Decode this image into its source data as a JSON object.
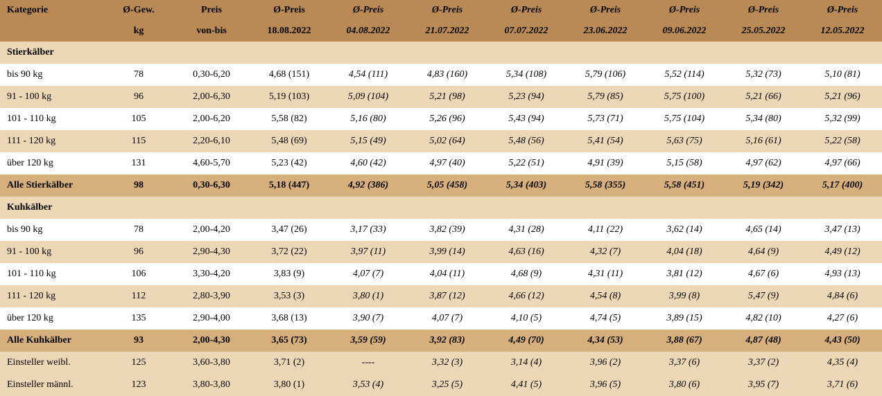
{
  "header": {
    "row1": [
      "Kategorie",
      "Ø-Gew.",
      "Preis",
      "Ø-Preis",
      "Ø-Preis",
      "Ø-Preis",
      "Ø-Preis",
      "Ø-Preis",
      "Ø-Preis",
      "Ø-Preis",
      "Ø-Preis"
    ],
    "row2": [
      "",
      "kg",
      "von-bis",
      "18.08.2022",
      "04.08.2022",
      "21.07.2022",
      "07.07.2022",
      "23.06.2022",
      "09.06.2022",
      "25.05.2022",
      "12.05.2022"
    ]
  },
  "sections": {
    "stier": {
      "title": "Stierkälber",
      "rows": [
        {
          "kat": "bis 90 kg",
          "gew": "78",
          "preis": "0,30-6,20",
          "v": [
            "4,68 (151)",
            "4,54 (111)",
            "4,83 (160)",
            "5,34 (108)",
            "5,79 (106)",
            "5,52 (114)",
            "5,32 (73)",
            "5,10 (81)"
          ]
        },
        {
          "kat": "91 - 100 kg",
          "gew": "96",
          "preis": "2,00-6,30",
          "v": [
            "5,19 (103)",
            "5,09 (104)",
            "5,21 (98)",
            "5,23 (94)",
            "5,79 (85)",
            "5,75 (100)",
            "5,21 (66)",
            "5,21 (96)"
          ]
        },
        {
          "kat": "101 - 110 kg",
          "gew": "105",
          "preis": "2,00-6,20",
          "v": [
            "5,58 (82)",
            "5,16 (80)",
            "5,26 (96)",
            "5,43 (94)",
            "5,73 (71)",
            "5,75 (104)",
            "5,34 (80)",
            "5,32 (99)"
          ]
        },
        {
          "kat": "111 - 120 kg",
          "gew": "115",
          "preis": "2,20-6,10",
          "v": [
            "5,48 (69)",
            "5,15 (49)",
            "5,02 (64)",
            "5,48 (56)",
            "5,41 (54)",
            "5,63 (75)",
            "5,16 (61)",
            "5,22 (58)"
          ]
        },
        {
          "kat": "über 120 kg",
          "gew": "131",
          "preis": "4,60-5,70",
          "v": [
            "5,23 (42)",
            "4,60 (42)",
            "4,97 (40)",
            "5,22 (51)",
            "4,91 (39)",
            "5,15 (58)",
            "4,97 (62)",
            "4,97 (66)"
          ]
        }
      ],
      "total": {
        "kat": "Alle Stierkälber",
        "gew": "98",
        "preis": "0,30-6,30",
        "v": [
          "5,18 (447)",
          "4,92 (386)",
          "5,05 (458)",
          "5,34 (403)",
          "5,58 (355)",
          "5,58 (451)",
          "5,19 (342)",
          "5,17 (400)"
        ]
      }
    },
    "kuh": {
      "title": "Kuhkälber",
      "rows": [
        {
          "kat": "bis 90 kg",
          "gew": "78",
          "preis": "2,00-4,20",
          "v": [
            "3,47 (26)",
            "3,17 (33)",
            "3,82 (39)",
            "4,31 (28)",
            "4,11 (22)",
            "3,62 (14)",
            "4,65 (14)",
            "3,47 (13)"
          ]
        },
        {
          "kat": "91 - 100 kg",
          "gew": "96",
          "preis": "2,90-4,30",
          "v": [
            "3,72 (22)",
            "3,97 (11)",
            "3,99 (14)",
            "4,63 (16)",
            "4,32 (7)",
            "4,04 (18)",
            "4,64 (9)",
            "4,49 (12)"
          ]
        },
        {
          "kat": "101 - 110 kg",
          "gew": "106",
          "preis": "3,30-4,20",
          "v": [
            "3,83 (9)",
            "4,07 (7)",
            "4,04 (11)",
            "4,68 (9)",
            "4,31 (11)",
            "3,81 (12)",
            "4,67 (6)",
            "4,93 (13)"
          ]
        },
        {
          "kat": "111 - 120 kg",
          "gew": "112",
          "preis": "2,80-3,90",
          "v": [
            "3,53 (3)",
            "3,80 (1)",
            "3,87 (12)",
            "4,66 (12)",
            "4,54 (8)",
            "3,99 (8)",
            "5,47 (9)",
            "4,84 (6)"
          ]
        },
        {
          "kat": "über 120 kg",
          "gew": "135",
          "preis": "2,90-4,00",
          "v": [
            "3,68 (13)",
            "3,90 (7)",
            "4,07 (7)",
            "4,10 (5)",
            "4,74 (5)",
            "3,89 (15)",
            "4,82 (10)",
            "4,27 (6)"
          ]
        }
      ],
      "total": {
        "kat": "Alle Kuhkälber",
        "gew": "93",
        "preis": "2,00-4,30",
        "v": [
          "3,65 (73)",
          "3,59 (59)",
          "3,92 (83)",
          "4,49 (70)",
          "4,34 (53)",
          "3,88 (67)",
          "4,87 (48)",
          "4,43 (50)"
        ]
      }
    },
    "einsteller": [
      {
        "kat": "Einsteller weibl.",
        "gew": "125",
        "preis": "3,60-3,80",
        "v": [
          "3,71 (2)",
          "----",
          "3,32 (3)",
          "3,14 (4)",
          "3,96 (2)",
          "3,37 (6)",
          "3,37 (2)",
          "4,35 (4)"
        ]
      },
      {
        "kat": "Einsteller männl.",
        "gew": "123",
        "preis": "3,80-3,80",
        "v": [
          "3,80 (1)",
          "3,53 (4)",
          "3,25 (5)",
          "4,41 (5)",
          "3,96 (5)",
          "3,80 (6)",
          "3,95 (7)",
          "3,71 (6)"
        ]
      }
    ]
  }
}
